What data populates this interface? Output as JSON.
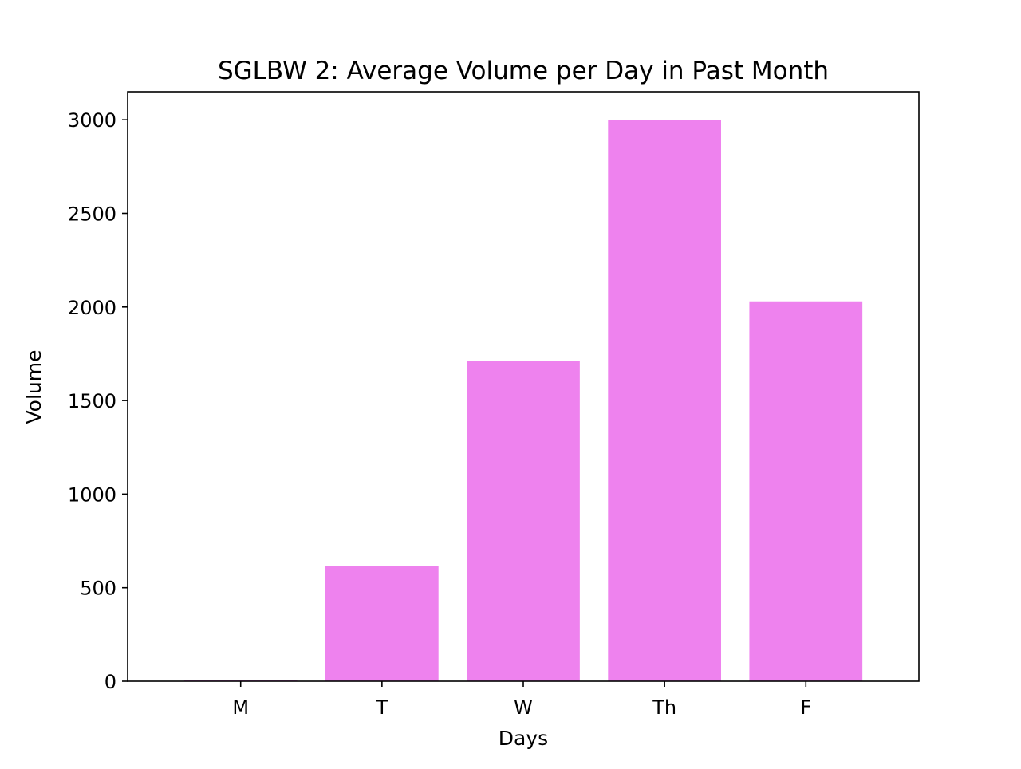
{
  "chart_data": {
    "type": "bar",
    "title": "SGLBW 2: Average Volume per Day in Past Month",
    "xlabel": "Days",
    "ylabel": "Volume",
    "categories": [
      "M",
      "T",
      "W",
      "Th",
      "F"
    ],
    "values": [
      5,
      615,
      1710,
      3000,
      2030
    ],
    "ylim": [
      0,
      3150
    ],
    "yticks": [
      0,
      500,
      1000,
      1500,
      2000,
      2500,
      3000
    ],
    "grid": false,
    "legend": false,
    "bar_color": "#ee82ee"
  }
}
